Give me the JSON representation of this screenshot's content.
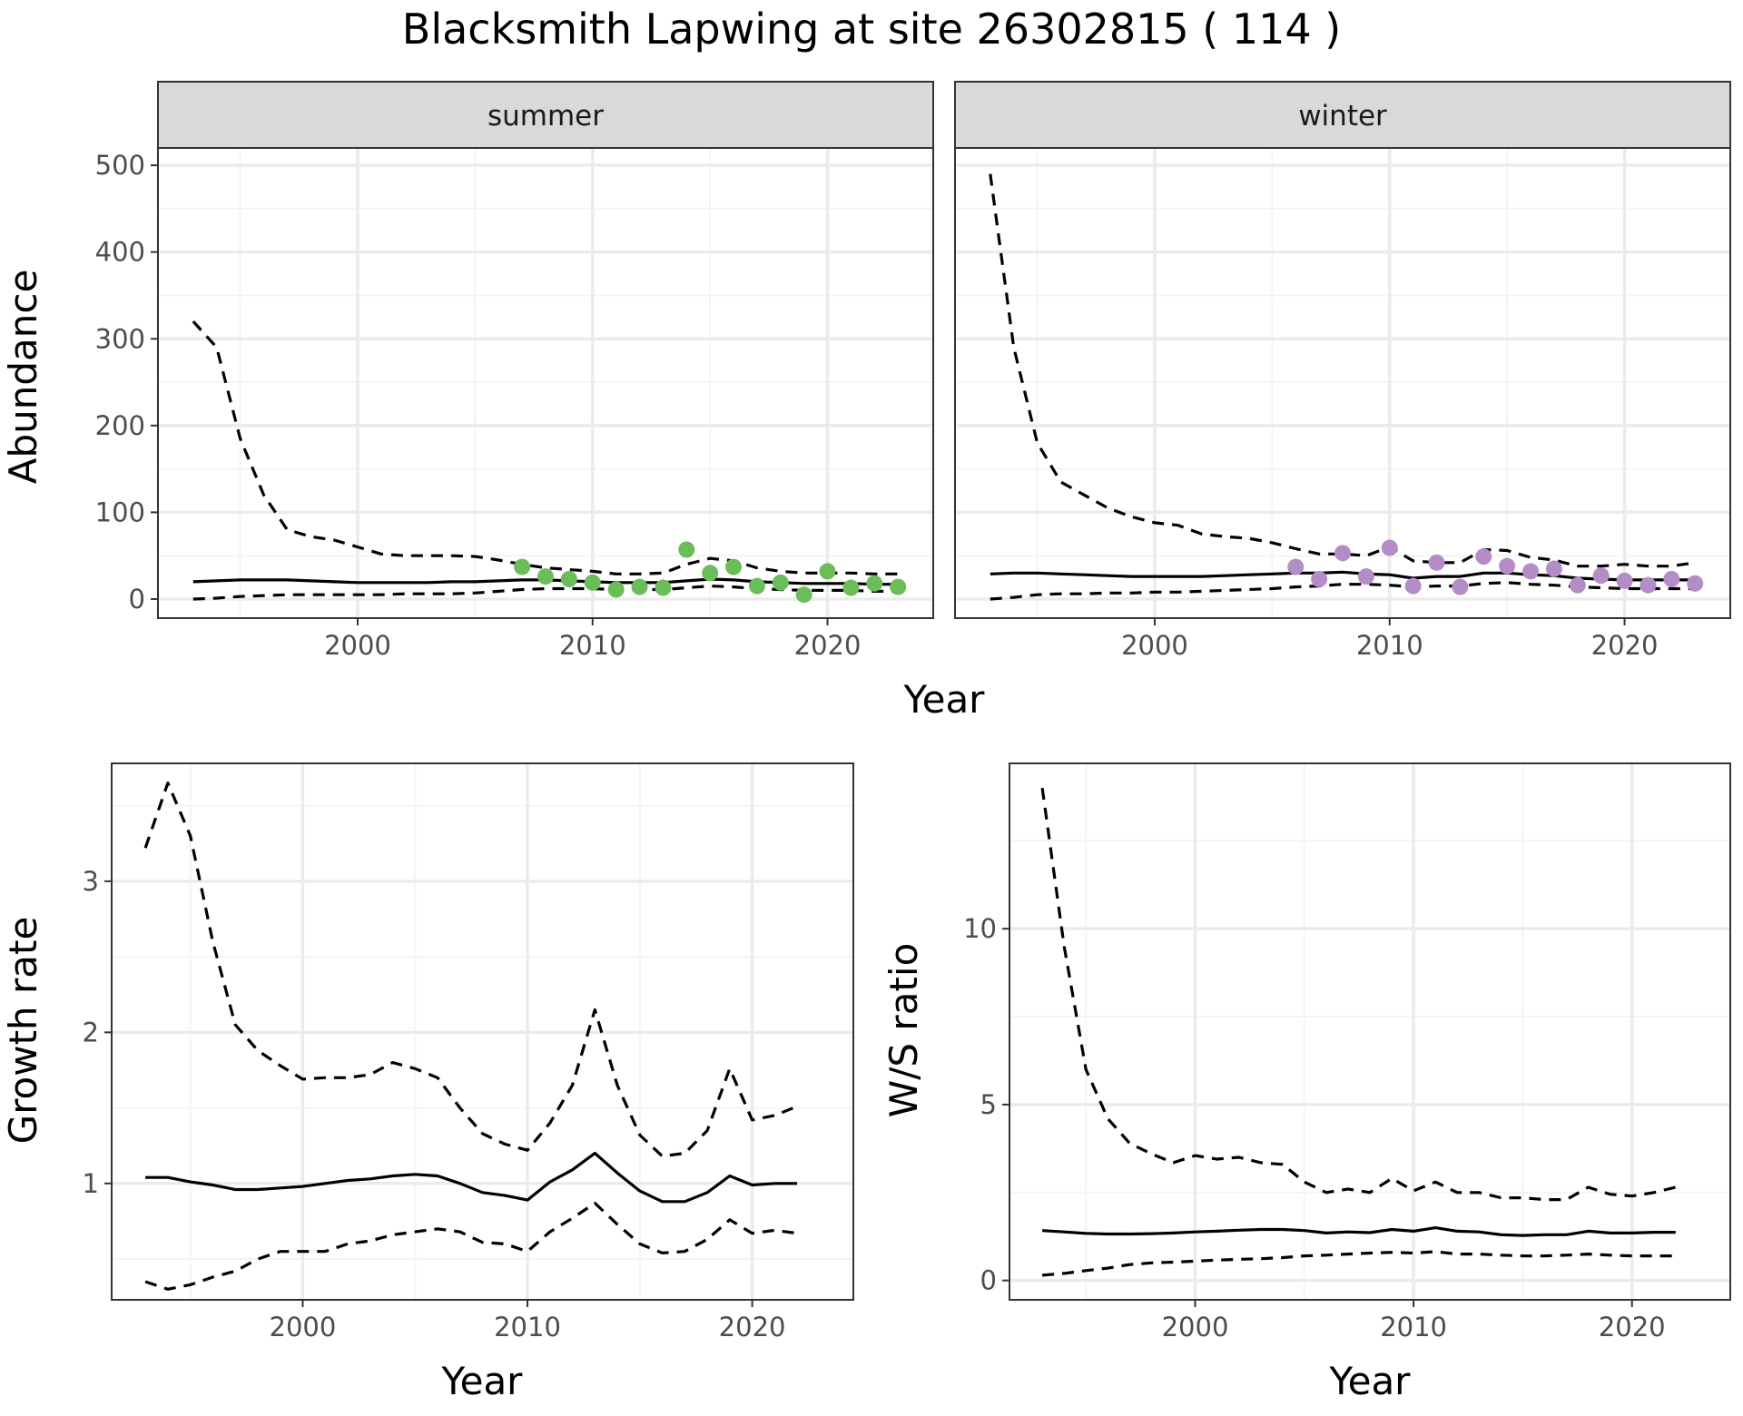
{
  "title": "Blacksmith Lapwing at site 26302815 ( 114 )",
  "colors": {
    "summer_points": "#6bbd5a",
    "winter_points": "#b48cc6",
    "line": "#000000",
    "grid_major": "#ebebeb",
    "grid_minor": "#f4f4f4",
    "strip_fill": "#d9d9d9",
    "panel_border": "#333333"
  },
  "chart_data": [
    {
      "type": "line",
      "panel": "summer",
      "strip_label": "summer",
      "xlabel": "Year",
      "ylabel": "Abundance",
      "xlim": [
        1991.5,
        2024.5
      ],
      "ylim": [
        -22,
        520
      ],
      "xticks": [
        2000,
        2010,
        2020
      ],
      "yticks": [
        0,
        100,
        200,
        300,
        400,
        500
      ],
      "grid": true,
      "x": [
        1993,
        1994,
        1995,
        1996,
        1997,
        1998,
        1999,
        2000,
        2001,
        2002,
        2003,
        2004,
        2005,
        2006,
        2007,
        2008,
        2009,
        2010,
        2011,
        2012,
        2013,
        2014,
        2015,
        2016,
        2017,
        2018,
        2019,
        2020,
        2021,
        2022,
        2023
      ],
      "series": [
        {
          "role": "estimate",
          "style": "solid",
          "values": [
            20,
            21,
            22,
            22,
            22,
            21,
            20,
            19,
            19,
            19,
            19,
            20,
            20,
            21,
            22,
            22,
            21,
            20,
            19,
            19,
            19,
            21,
            23,
            22,
            20,
            19,
            18,
            18,
            18,
            17,
            17
          ]
        },
        {
          "role": "upper",
          "style": "dashed",
          "values": [
            320,
            290,
            185,
            120,
            80,
            72,
            68,
            60,
            52,
            50,
            50,
            50,
            49,
            45,
            40,
            36,
            34,
            32,
            29,
            29,
            30,
            40,
            47,
            44,
            36,
            32,
            30,
            30,
            30,
            29,
            29
          ]
        },
        {
          "role": "lower",
          "style": "dashed",
          "values": [
            0,
            1,
            3,
            4,
            5,
            5,
            5,
            5,
            5,
            6,
            6,
            6,
            7,
            9,
            11,
            12,
            12,
            12,
            11,
            11,
            11,
            13,
            15,
            14,
            12,
            11,
            10,
            10,
            10,
            9,
            9
          ]
        }
      ],
      "points": {
        "x": [
          2007,
          2008,
          2009,
          2010,
          2011,
          2012,
          2013,
          2014,
          2015,
          2016,
          2017,
          2018,
          2019,
          2020,
          2021,
          2022,
          2023
        ],
        "y": [
          37,
          26,
          23,
          19,
          11,
          14,
          13,
          57,
          30,
          37,
          15,
          19,
          5,
          32,
          13,
          18,
          14
        ]
      }
    },
    {
      "type": "line",
      "panel": "winter",
      "strip_label": "winter",
      "xlabel": "Year",
      "ylabel": "Abundance",
      "xlim": [
        1991.5,
        2024.5
      ],
      "ylim": [
        -22,
        520
      ],
      "xticks": [
        2000,
        2010,
        2020
      ],
      "yticks": [
        0,
        100,
        200,
        300,
        400,
        500
      ],
      "grid": true,
      "x": [
        1993,
        1994,
        1995,
        1996,
        1997,
        1998,
        1999,
        2000,
        2001,
        2002,
        2003,
        2004,
        2005,
        2006,
        2007,
        2008,
        2009,
        2010,
        2011,
        2012,
        2013,
        2014,
        2015,
        2016,
        2017,
        2018,
        2019,
        2020,
        2021,
        2022,
        2023
      ],
      "series": [
        {
          "role": "estimate",
          "style": "solid",
          "values": [
            29,
            30,
            30,
            29,
            28,
            27,
            26,
            26,
            26,
            26,
            27,
            28,
            29,
            30,
            30,
            31,
            29,
            28,
            24,
            26,
            26,
            30,
            30,
            28,
            27,
            24,
            23,
            22,
            22,
            22,
            22
          ]
        },
        {
          "role": "upper",
          "style": "dashed",
          "values": [
            490,
            290,
            180,
            135,
            120,
            105,
            95,
            88,
            85,
            75,
            72,
            70,
            65,
            58,
            52,
            52,
            50,
            60,
            44,
            42,
            42,
            57,
            56,
            48,
            45,
            38,
            38,
            40,
            38,
            38,
            42
          ]
        },
        {
          "role": "lower",
          "style": "dashed",
          "values": [
            0,
            2,
            5,
            6,
            6,
            7,
            7,
            8,
            8,
            9,
            10,
            11,
            12,
            14,
            15,
            17,
            17,
            16,
            14,
            15,
            15,
            18,
            19,
            17,
            16,
            14,
            13,
            12,
            12,
            12,
            12
          ]
        }
      ],
      "points": {
        "x": [
          2006,
          2007,
          2008,
          2009,
          2010,
          2011,
          2012,
          2013,
          2014,
          2015,
          2016,
          2017,
          2018,
          2019,
          2020,
          2021,
          2022,
          2023
        ],
        "y": [
          37,
          23,
          53,
          26,
          59,
          15,
          42,
          14,
          49,
          38,
          32,
          35,
          16,
          27,
          21,
          16,
          23,
          18
        ]
      }
    },
    {
      "type": "line",
      "panel": "growth",
      "xlabel": "Year",
      "ylabel": "Growth rate",
      "xlim": [
        1991.5,
        2024.5
      ],
      "ylim": [
        0.23,
        3.78
      ],
      "xticks": [
        2000,
        2010,
        2020
      ],
      "yticks": [
        1,
        2,
        3
      ],
      "grid": true,
      "x": [
        1993,
        1994,
        1995,
        1996,
        1997,
        1998,
        1999,
        2000,
        2001,
        2002,
        2003,
        2004,
        2005,
        2006,
        2007,
        2008,
        2009,
        2010,
        2011,
        2012,
        2013,
        2014,
        2015,
        2016,
        2017,
        2018,
        2019,
        2020,
        2021,
        2022
      ],
      "series": [
        {
          "role": "estimate",
          "style": "solid",
          "values": [
            1.04,
            1.04,
            1.01,
            0.99,
            0.96,
            0.96,
            0.97,
            0.98,
            1.0,
            1.02,
            1.03,
            1.05,
            1.06,
            1.05,
            1.0,
            0.94,
            0.92,
            0.89,
            1.01,
            1.09,
            1.2,
            1.07,
            0.95,
            0.88,
            0.88,
            0.94,
            1.05,
            0.99,
            1.0,
            1.0
          ]
        },
        {
          "role": "upper",
          "style": "dashed",
          "values": [
            3.22,
            3.65,
            3.3,
            2.6,
            2.05,
            1.88,
            1.78,
            1.69,
            1.7,
            1.7,
            1.72,
            1.8,
            1.76,
            1.7,
            1.5,
            1.33,
            1.26,
            1.22,
            1.4,
            1.65,
            2.15,
            1.65,
            1.32,
            1.18,
            1.2,
            1.35,
            1.76,
            1.42,
            1.45,
            1.51
          ]
        },
        {
          "role": "lower",
          "style": "dashed",
          "values": [
            0.35,
            0.3,
            0.33,
            0.38,
            0.42,
            0.5,
            0.55,
            0.55,
            0.55,
            0.6,
            0.62,
            0.66,
            0.68,
            0.7,
            0.68,
            0.61,
            0.6,
            0.55,
            0.68,
            0.77,
            0.87,
            0.73,
            0.6,
            0.54,
            0.55,
            0.63,
            0.76,
            0.67,
            0.69,
            0.67
          ]
        }
      ]
    },
    {
      "type": "line",
      "panel": "ratio",
      "xlabel": "Year",
      "ylabel": "W/S ratio",
      "xlim": [
        1991.5,
        2024.5
      ],
      "ylim": [
        -0.55,
        14.7
      ],
      "xticks": [
        2000,
        2010,
        2020
      ],
      "yticks": [
        0,
        5,
        10
      ],
      "grid": true,
      "x": [
        1993,
        1994,
        1995,
        1996,
        1997,
        1998,
        1999,
        2000,
        2001,
        2002,
        2003,
        2004,
        2005,
        2006,
        2007,
        2008,
        2009,
        2010,
        2011,
        2012,
        2013,
        2014,
        2015,
        2016,
        2017,
        2018,
        2019,
        2020,
        2021,
        2022
      ],
      "series": [
        {
          "role": "estimate",
          "style": "solid",
          "values": [
            1.42,
            1.38,
            1.34,
            1.32,
            1.32,
            1.33,
            1.35,
            1.38,
            1.4,
            1.43,
            1.45,
            1.45,
            1.42,
            1.35,
            1.38,
            1.36,
            1.45,
            1.4,
            1.5,
            1.4,
            1.38,
            1.3,
            1.28,
            1.3,
            1.3,
            1.4,
            1.35,
            1.35,
            1.37,
            1.37
          ]
        },
        {
          "role": "upper",
          "style": "dashed",
          "values": [
            14.0,
            9.5,
            6.0,
            4.6,
            3.9,
            3.6,
            3.35,
            3.55,
            3.45,
            3.5,
            3.35,
            3.3,
            2.8,
            2.5,
            2.6,
            2.5,
            2.9,
            2.55,
            2.8,
            2.5,
            2.5,
            2.35,
            2.35,
            2.3,
            2.3,
            2.65,
            2.45,
            2.4,
            2.5,
            2.65
          ]
        },
        {
          "role": "lower",
          "style": "dashed",
          "values": [
            0.15,
            0.2,
            0.28,
            0.35,
            0.45,
            0.5,
            0.52,
            0.55,
            0.58,
            0.6,
            0.62,
            0.65,
            0.7,
            0.72,
            0.75,
            0.78,
            0.8,
            0.78,
            0.82,
            0.75,
            0.75,
            0.72,
            0.7,
            0.7,
            0.72,
            0.75,
            0.72,
            0.7,
            0.7,
            0.7
          ]
        }
      ]
    }
  ]
}
